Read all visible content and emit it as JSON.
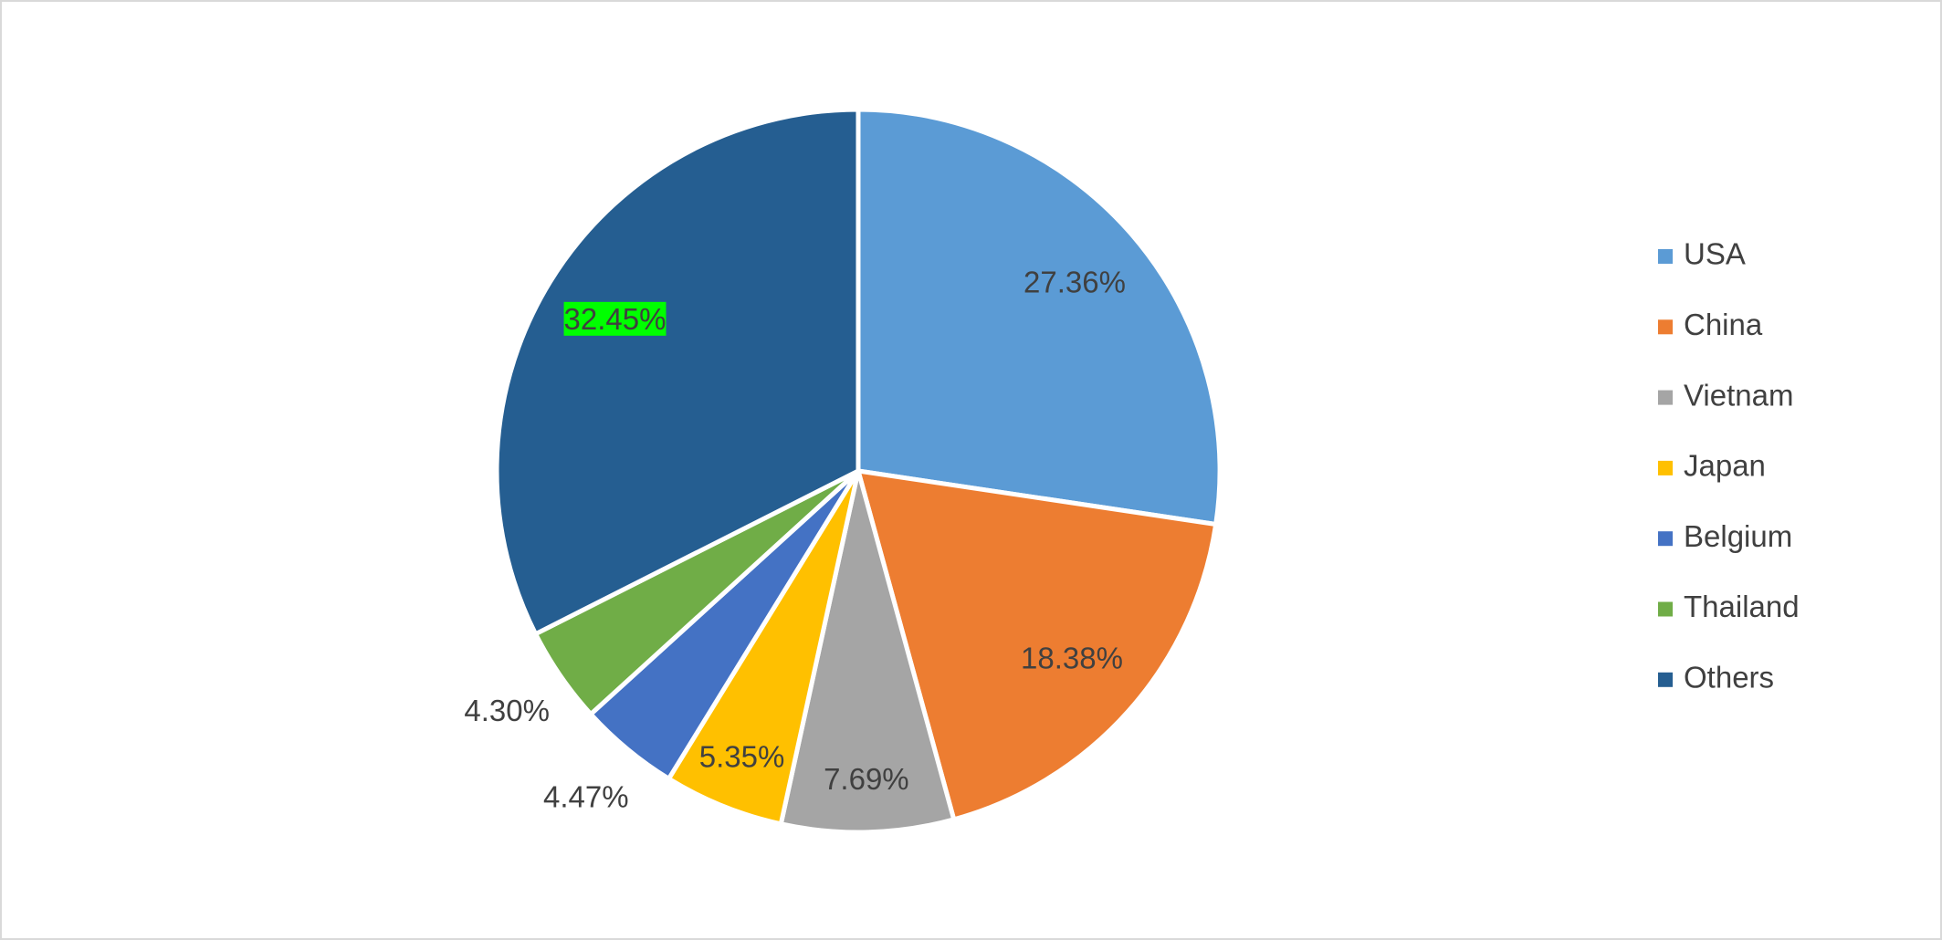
{
  "chart_data": {
    "type": "pie",
    "categories": [
      "USA",
      "China",
      "Vietnam",
      "Japan",
      "Belgium",
      "Thailand",
      "Others"
    ],
    "values": [
      27.36,
      18.38,
      7.69,
      5.35,
      4.47,
      4.3,
      32.45
    ],
    "value_labels": [
      "27.36%",
      "18.38%",
      "7.69%",
      "5.35%",
      "4.47%",
      "4.30%",
      "32.45%"
    ],
    "colors": [
      "#5b9bd5",
      "#ed7d31",
      "#a5a5a5",
      "#ffc000",
      "#4472c4",
      "#70ad47",
      "#255e91"
    ],
    "label_backgrounds": [
      null,
      null,
      null,
      null,
      null,
      null,
      "#00ff00"
    ],
    "legend": "right"
  }
}
